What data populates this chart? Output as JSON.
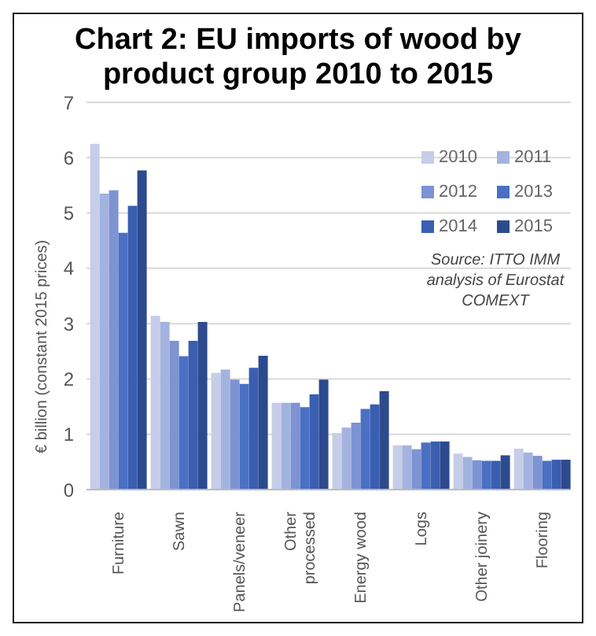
{
  "chart_data": {
    "type": "bar",
    "title": "Chart 2: EU imports of wood by product group 2010 to 2015",
    "ylabel": "€ billion (constant 2015 prices)",
    "categories": [
      "Furniture",
      "Sawn",
      "Panels/veneer",
      "Other processed",
      "Energy wood",
      "Logs",
      "Other joinery",
      "Flooring"
    ],
    "series": [
      {
        "name": "2010",
        "color": "#c5cde8",
        "values": [
          6.25,
          3.14,
          2.11,
          1.57,
          1.02,
          0.8,
          0.65,
          0.74
        ]
      },
      {
        "name": "2011",
        "color": "#a3b3df",
        "values": [
          5.35,
          3.03,
          2.17,
          1.57,
          1.12,
          0.8,
          0.59,
          0.67
        ]
      },
      {
        "name": "2012",
        "color": "#7d93d2",
        "values": [
          5.41,
          2.69,
          1.99,
          1.57,
          1.21,
          0.73,
          0.53,
          0.61
        ]
      },
      {
        "name": "2013",
        "color": "#4a70c4",
        "values": [
          4.64,
          2.41,
          1.91,
          1.49,
          1.46,
          0.85,
          0.52,
          0.52
        ]
      },
      {
        "name": "2014",
        "color": "#3a5eb0",
        "values": [
          5.13,
          2.69,
          2.2,
          1.72,
          1.54,
          0.87,
          0.52,
          0.54
        ]
      },
      {
        "name": "2015",
        "color": "#2e4a8e",
        "values": [
          5.77,
          3.03,
          2.42,
          1.99,
          1.78,
          0.87,
          0.62,
          0.54
        ]
      }
    ],
    "ylim": [
      0,
      7
    ],
    "yticks": [
      0,
      1,
      2,
      3,
      4,
      5,
      6,
      7
    ],
    "grid": "y",
    "legend": "top right",
    "annotations": [
      "Source: ITTO IMM analysis of Eurostat COMEXT"
    ]
  }
}
